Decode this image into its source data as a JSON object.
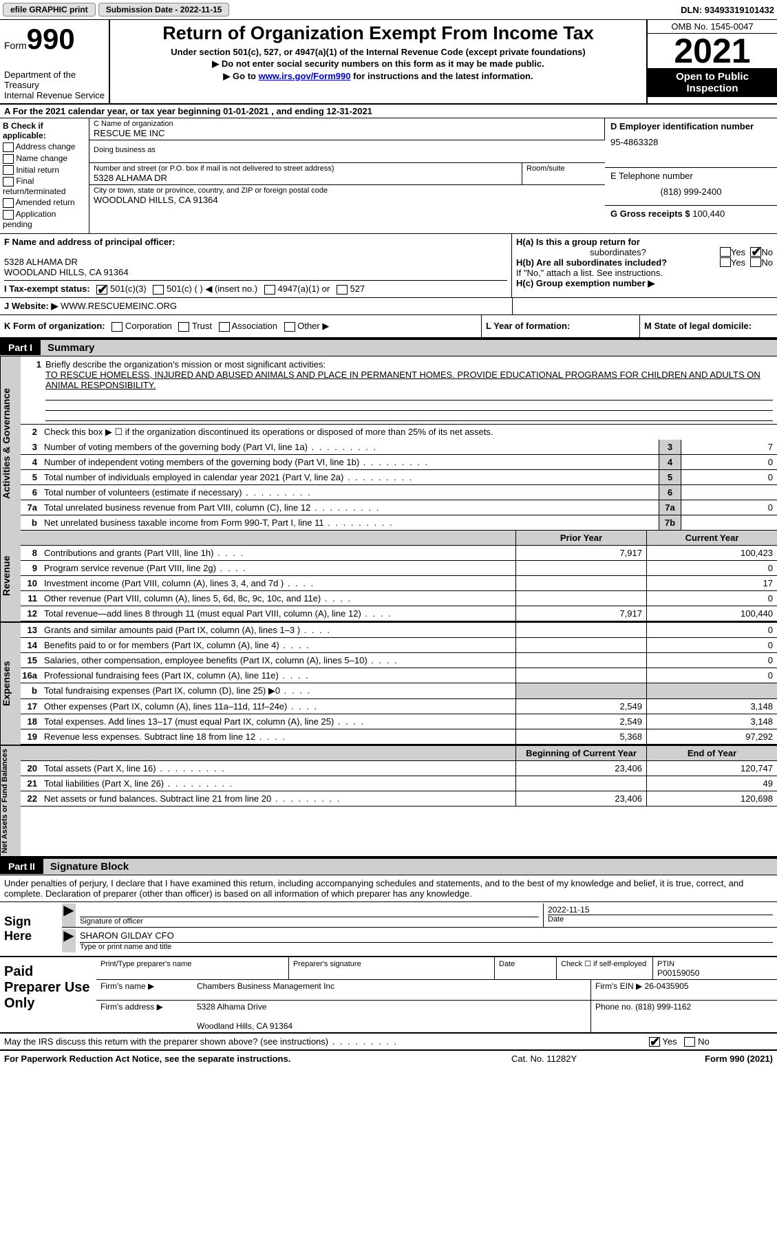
{
  "top_bar": {
    "efile": "efile GRAPHIC print",
    "submission_prefix": "Submission Date - ",
    "submission_date": "2022-11-15",
    "dln_prefix": "DLN: ",
    "dln": "93493319101432"
  },
  "header": {
    "form_word": "Form",
    "form_number": "990",
    "dept": "Department of the Treasury",
    "irs": "Internal Revenue Service",
    "title": "Return of Organization Exempt From Income Tax",
    "subtitle": "Under section 501(c), 527, or 4947(a)(1) of the Internal Revenue Code (except private foundations)",
    "note1": "▶ Do not enter social security numbers on this form as it may be made public.",
    "note2_prefix": "▶ Go to ",
    "note2_link": "www.irs.gov/Form990",
    "note2_suffix": " for instructions and the latest information.",
    "omb": "OMB No. 1545-0047",
    "tax_year": "2021",
    "inspection_l1": "Open to Public",
    "inspection_l2": "Inspection"
  },
  "row_a": "A For the 2021 calendar year, or tax year beginning 01-01-2021   , and ending 12-31-2021",
  "col_b": {
    "header": "B Check if applicable:",
    "items": [
      "Address change",
      "Name change",
      "Initial return",
      "Final return/terminated",
      "Amended return",
      "Application pending"
    ]
  },
  "col_c": {
    "name_label": "C Name of organization",
    "name": "RESCUE ME INC",
    "dba_label": "Doing business as",
    "street_label": "Number and street (or P.O. box if mail is not delivered to street address)",
    "street": "5328 ALHAMA DR",
    "suite_label": "Room/suite",
    "city_label": "City or town, state or province, country, and ZIP or foreign postal code",
    "city": "WOODLAND HILLS, CA  91364"
  },
  "col_d": {
    "ein_label": "D Employer identification number",
    "ein": "95-4863328",
    "phone_label": "E Telephone number",
    "phone": "(818) 999-2400",
    "receipts_label": "G Gross receipts $ ",
    "receipts": "100,440"
  },
  "row_f": {
    "label": "F  Name and address of principal officer:",
    "addr1": "5328 ALHAMA DR",
    "addr2": "WOODLAND HILLS, CA  91364"
  },
  "row_h": {
    "ha_label": "H(a)  Is this a group return for",
    "ha_label2": "subordinates?",
    "hb_label": "H(b)  Are all subordinates included?",
    "hb_note": "If \"No,\" attach a list. See instructions.",
    "hc_label": "H(c)  Group exemption number ▶",
    "yes": "Yes",
    "no": "No"
  },
  "row_i": {
    "label": "I   Tax-exempt status:",
    "opt1": "501(c)(3)",
    "opt2": "501(c) (  ) ◀ (insert no.)",
    "opt3": "4947(a)(1) or",
    "opt4": "527"
  },
  "row_j": {
    "label": "J   Website: ▶",
    "value": "  WWW.RESCUEMEINC.ORG"
  },
  "row_k": {
    "label": "K Form of organization:",
    "opts": [
      "Corporation",
      "Trust",
      "Association",
      "Other ▶"
    ],
    "l_label": "L Year of formation:",
    "m_label": "M State of legal domicile:"
  },
  "part1": {
    "part": "Part I",
    "title": "Summary",
    "vtab1": "Activities & Governance",
    "vtab2": "Revenue",
    "vtab3": "Expenses",
    "vtab4": "Net Assets or Fund Balances",
    "line1_label": "Briefly describe the organization's mission or most significant activities:",
    "line1_text": "TO RESCUE HOMELESS, INJURED AND ABUSED ANIMALS AND PLACE IN PERMANENT HOMES. PROVIDE EDUCATIONAL PROGRAMS FOR CHILDREN AND ADULTS ON ANIMAL RESPONSIBILITY.",
    "line2": "Check this box ▶ ☐  if the organization discontinued its operations or disposed of more than 25% of its net assets.",
    "lines_ag": [
      {
        "n": "3",
        "t": "Number of voting members of the governing body (Part VI, line 1a)",
        "box": "3",
        "v": "7"
      },
      {
        "n": "4",
        "t": "Number of independent voting members of the governing body (Part VI, line 1b)",
        "box": "4",
        "v": "0"
      },
      {
        "n": "5",
        "t": "Total number of individuals employed in calendar year 2021 (Part V, line 2a)",
        "box": "5",
        "v": "0"
      },
      {
        "n": "6",
        "t": "Total number of volunteers (estimate if necessary)",
        "box": "6",
        "v": ""
      },
      {
        "n": "7a",
        "t": "Total unrelated business revenue from Part VIII, column (C), line 12",
        "box": "7a",
        "v": "0"
      },
      {
        "n": "b",
        "t": "Net unrelated business taxable income from Form 990-T, Part I, line 11",
        "box": "7b",
        "v": ""
      }
    ],
    "hdr_py": "Prior Year",
    "hdr_cy": "Current Year",
    "rev_lines": [
      {
        "n": "8",
        "t": "Contributions and grants (Part VIII, line 1h)",
        "py": "7,917",
        "cy": "100,423"
      },
      {
        "n": "9",
        "t": "Program service revenue (Part VIII, line 2g)",
        "py": "",
        "cy": "0"
      },
      {
        "n": "10",
        "t": "Investment income (Part VIII, column (A), lines 3, 4, and 7d )",
        "py": "",
        "cy": "17"
      },
      {
        "n": "11",
        "t": "Other revenue (Part VIII, column (A), lines 5, 6d, 8c, 9c, 10c, and 11e)",
        "py": "",
        "cy": "0"
      },
      {
        "n": "12",
        "t": "Total revenue—add lines 8 through 11 (must equal Part VIII, column (A), line 12)",
        "py": "7,917",
        "cy": "100,440"
      }
    ],
    "exp_lines": [
      {
        "n": "13",
        "t": "Grants and similar amounts paid (Part IX, column (A), lines 1–3 )",
        "py": "",
        "cy": "0"
      },
      {
        "n": "14",
        "t": "Benefits paid to or for members (Part IX, column (A), line 4)",
        "py": "",
        "cy": "0"
      },
      {
        "n": "15",
        "t": "Salaries, other compensation, employee benefits (Part IX, column (A), lines 5–10)",
        "py": "",
        "cy": "0"
      },
      {
        "n": "16a",
        "t": "Professional fundraising fees (Part IX, column (A), line 11e)",
        "py": "",
        "cy": "0"
      },
      {
        "n": "b",
        "t": "Total fundraising expenses (Part IX, column (D), line 25) ▶0",
        "py": "SHADE",
        "cy": "SHADE"
      },
      {
        "n": "17",
        "t": "Other expenses (Part IX, column (A), lines 11a–11d, 11f–24e)",
        "py": "2,549",
        "cy": "3,148"
      },
      {
        "n": "18",
        "t": "Total expenses. Add lines 13–17 (must equal Part IX, column (A), line 25)",
        "py": "2,549",
        "cy": "3,148"
      },
      {
        "n": "19",
        "t": "Revenue less expenses. Subtract line 18 from line 12",
        "py": "5,368",
        "cy": "97,292"
      }
    ],
    "hdr_boy": "Beginning of Current Year",
    "hdr_eoy": "End of Year",
    "na_lines": [
      {
        "n": "20",
        "t": "Total assets (Part X, line 16)",
        "py": "23,406",
        "cy": "120,747"
      },
      {
        "n": "21",
        "t": "Total liabilities (Part X, line 26)",
        "py": "",
        "cy": "49"
      },
      {
        "n": "22",
        "t": "Net assets or fund balances. Subtract line 21 from line 20",
        "py": "23,406",
        "cy": "120,698"
      }
    ]
  },
  "part2": {
    "part": "Part II",
    "title": "Signature Block",
    "intro": "Under penalties of perjury, I declare that I have examined this return, including accompanying schedules and statements, and to the best of my knowledge and belief, it is true, correct, and complete. Declaration of preparer (other than officer) is based on all information of which preparer has any knowledge.",
    "sign_here": "Sign Here",
    "sig_label": "Signature of officer",
    "date_label": "Date",
    "sig_date": "2022-11-15",
    "name_entered": "SHARON GILDAY CFO",
    "name_label": "Type or print name and title",
    "paid_label": "Paid Preparer Use Only",
    "col_print": "Print/Type preparer's name",
    "col_sig": "Preparer's signature",
    "col_date": "Date",
    "col_self": "Check ☐ if self-employed",
    "col_ptin_l": "PTIN",
    "col_ptin_v": "P00159050",
    "firm_name_l": "Firm's name     ▶",
    "firm_name_v": "Chambers Business Management Inc",
    "firm_ein_l": "Firm's EIN ▶",
    "firm_ein_v": "26-0435905",
    "firm_addr_l": "Firm's address  ▶",
    "firm_addr_v1": "5328 Alhama Drive",
    "firm_addr_v2": "Woodland Hills, CA  91364",
    "firm_phone_l": "Phone no.",
    "firm_phone_v": "(818) 999-1162",
    "discuss": "May the IRS discuss this return with the preparer shown above? (see instructions)",
    "yes": "Yes",
    "no": "No"
  },
  "footer": {
    "left": "For Paperwork Reduction Act Notice, see the separate instructions.",
    "mid": "Cat. No. 11282Y",
    "right": "Form 990 (2021)"
  }
}
